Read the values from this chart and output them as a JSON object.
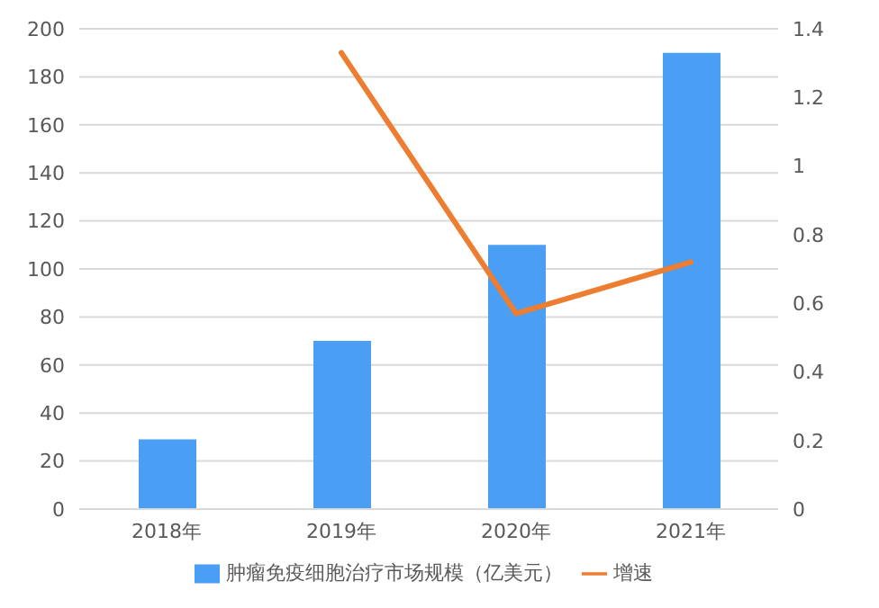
{
  "chart_data": {
    "type": "bar",
    "categories": [
      "2018年",
      "2019年",
      "2020年",
      "2021年"
    ],
    "series": [
      {
        "name": "肿瘤免疫细胞治疗市场规模（亿美元）",
        "color": "#4a9ff5",
        "values": [
          29,
          70,
          110,
          190
        ]
      },
      {
        "name": "增速",
        "type": "line",
        "axis": "y2",
        "color": "#ed7d31",
        "values": [
          null,
          1.33,
          0.57,
          0.72
        ]
      }
    ],
    "ylim": [
      0,
      200
    ],
    "yticks": [
      0,
      20,
      40,
      60,
      80,
      100,
      120,
      140,
      160,
      180,
      200
    ],
    "y2lim": [
      0,
      1.4
    ],
    "y2ticks": [
      0,
      0.2,
      0.4,
      0.6,
      0.8,
      1,
      1.2,
      1.4
    ],
    "grid": "y",
    "legend": "bottom",
    "marker": "none"
  }
}
